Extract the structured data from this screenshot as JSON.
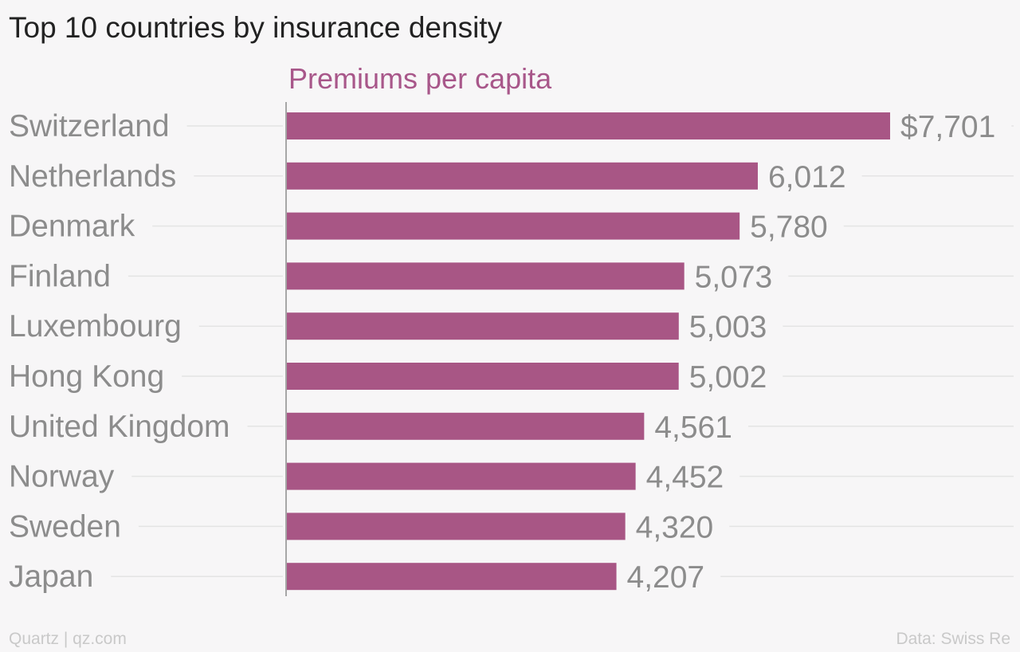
{
  "colors": {
    "bar": "#a85685",
    "series_label": "#a8578a",
    "category_text": "#8c8c8c",
    "value_text": "#8c8c8c",
    "gridline": "#e4e4e4",
    "axis": "#8c8c8c",
    "background": "#f7f6f7"
  },
  "chart_data": {
    "type": "bar",
    "orientation": "horizontal",
    "title": "Top 10 countries by insurance density",
    "series": [
      {
        "name": "Premiums per capita",
        "values": [
          7701,
          6012,
          5780,
          5073,
          5003,
          5002,
          4561,
          4452,
          4320,
          4207
        ],
        "value_labels": [
          "$7,701",
          "6,012",
          "5,780",
          "5,073",
          "5,003",
          "5,002",
          "4,561",
          "4,452",
          "4,320",
          "4,207"
        ]
      }
    ],
    "categories": [
      "Switzerland",
      "Netherlands",
      "Denmark",
      "Finland",
      "Luxembourg",
      "Hong Kong",
      "United Kingdom",
      "Norway",
      "Sweden",
      "Japan"
    ],
    "xlim": [
      0,
      7701
    ],
    "grid": true,
    "legend": "none"
  },
  "footer": {
    "source_left": "Quartz | qz.com",
    "source_right": "Data: Swiss Re"
  }
}
